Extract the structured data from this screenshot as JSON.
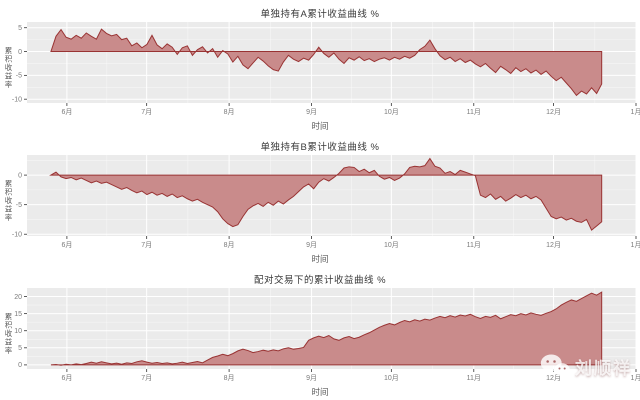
{
  "axis": {
    "x_title": "时间",
    "y_title": "累积收益率",
    "x_tick_labels": [
      "6月",
      "7月",
      "8月",
      "9月",
      "10月",
      "11月",
      "12月",
      "1月"
    ],
    "x_tick_days": [
      6,
      36,
      67,
      98,
      128,
      159,
      189,
      220
    ],
    "x_domain": [
      -9,
      220
    ]
  },
  "style": {
    "panel_bg": "#ebebeb",
    "grid_major": "#ffffff",
    "grid_minor": "rgba(255,255,255,0.55)",
    "area_fill": "#c98b8b",
    "area_line": "#993333",
    "tick_mark": "#333333",
    "tick_text": "#7a7a7a"
  },
  "watermark": {
    "text": "刘顺祥",
    "icon": "wechat-icon"
  },
  "chart_data": [
    {
      "type": "area",
      "title": "单独持有A累计收益曲线 %",
      "xlabel": "时间",
      "ylabel": "累积收益率",
      "legend": "none",
      "grid": "on",
      "x_start_day": 0,
      "x_step_days": 1.9,
      "ylim": [
        -10.8,
        6.2
      ],
      "y_ticks": [
        5,
        0,
        -5,
        -10
      ],
      "baseline": 0,
      "values": [
        0.0,
        3.2,
        4.6,
        3.0,
        2.6,
        3.4,
        2.8,
        3.9,
        3.2,
        2.6,
        4.7,
        3.8,
        3.3,
        3.6,
        2.5,
        2.8,
        1.2,
        1.8,
        0.8,
        1.5,
        3.4,
        1.4,
        0.6,
        1.6,
        0.9,
        -0.6,
        0.8,
        1.2,
        -0.8,
        0.4,
        1.0,
        -0.3,
        0.6,
        -1.2,
        0.2,
        -0.5,
        -2.2,
        -1.0,
        -2.8,
        -3.6,
        -2.4,
        -1.2,
        -2.0,
        -3.0,
        -3.8,
        -4.1,
        -2.2,
        -0.8,
        -1.6,
        -2.1,
        -1.4,
        -1.8,
        -0.6,
        0.9,
        -0.4,
        -1.2,
        -0.3,
        -1.6,
        -2.5,
        -1.3,
        -1.8,
        -1.1,
        -1.9,
        -1.5,
        -2.1,
        -1.6,
        -1.3,
        -1.8,
        -1.2,
        -1.6,
        -1.0,
        -1.4,
        -0.8,
        0.4,
        1.1,
        2.4,
        0.6,
        -0.9,
        -1.7,
        -1.2,
        -2.1,
        -1.5,
        -2.3,
        -1.8,
        -2.6,
        -3.2,
        -2.5,
        -3.5,
        -4.4,
        -3.1,
        -3.8,
        -4.6,
        -3.4,
        -4.2,
        -3.6,
        -4.5,
        -3.9,
        -4.8,
        -4.1,
        -5.2,
        -6.1,
        -5.4,
        -6.6,
        -7.8,
        -9.2,
        -8.3,
        -8.9,
        -7.6,
        -8.8,
        -6.8
      ]
    },
    {
      "type": "area",
      "title": "单独持有B累计收益曲线 %",
      "xlabel": "时间",
      "ylabel": "累积收益率",
      "legend": "none",
      "grid": "on",
      "x_start_day": 0,
      "x_step_days": 1.9,
      "ylim": [
        -10.3,
        3.4
      ],
      "y_ticks": [
        0,
        -5,
        -10
      ],
      "baseline": 0,
      "values": [
        0.0,
        0.5,
        -0.3,
        -0.6,
        -0.4,
        -0.8,
        -0.5,
        -0.9,
        -1.3,
        -1.0,
        -1.4,
        -1.2,
        -1.6,
        -2.0,
        -2.4,
        -2.1,
        -2.6,
        -3.0,
        -2.7,
        -3.3,
        -2.9,
        -3.4,
        -3.1,
        -3.6,
        -3.2,
        -3.8,
        -3.5,
        -4.0,
        -4.4,
        -4.1,
        -4.6,
        -5.0,
        -5.4,
        -6.2,
        -7.4,
        -8.2,
        -8.7,
        -8.4,
        -7.0,
        -5.8,
        -5.2,
        -4.8,
        -5.3,
        -4.6,
        -5.1,
        -4.4,
        -4.9,
        -4.2,
        -3.6,
        -2.8,
        -2.0,
        -1.5,
        -2.3,
        -1.2,
        -0.6,
        -1.0,
        -0.4,
        0.3,
        1.2,
        1.4,
        1.3,
        0.6,
        1.0,
        0.4,
        0.8,
        -0.2,
        -0.7,
        -0.4,
        -0.9,
        -0.5,
        0.2,
        1.3,
        1.5,
        1.4,
        1.6,
        2.8,
        1.5,
        1.2,
        0.3,
        0.6,
        0.1,
        0.8,
        0.5,
        0.2,
        -0.1,
        -3.4,
        -3.8,
        -3.2,
        -4.1,
        -3.6,
        -4.4,
        -3.9,
        -3.3,
        -3.8,
        -3.4,
        -4.0,
        -3.6,
        -4.2,
        -5.6,
        -7.0,
        -7.4,
        -7.1,
        -7.6,
        -7.3,
        -7.8,
        -8.0,
        -7.5,
        -9.3,
        -8.6,
        -7.9
      ]
    },
    {
      "type": "area",
      "title": "配对交易下的累计收益曲线 %",
      "xlabel": "时间",
      "ylabel": "累积收益率",
      "legend": "none",
      "grid": "on",
      "x_start_day": 0,
      "x_step_days": 1.9,
      "ylim": [
        -1.2,
        22.5
      ],
      "y_ticks": [
        20,
        15,
        10,
        5,
        0
      ],
      "baseline": 0,
      "values": [
        0.0,
        0.1,
        -0.1,
        0.2,
        0.0,
        0.3,
        0.1,
        0.4,
        0.8,
        0.5,
        0.9,
        0.6,
        0.3,
        0.5,
        0.2,
        0.6,
        0.4,
        0.9,
        1.2,
        0.8,
        0.5,
        0.7,
        0.4,
        0.6,
        0.3,
        0.5,
        0.8,
        0.4,
        0.7,
        1.0,
        0.6,
        1.4,
        2.2,
        2.6,
        3.1,
        2.7,
        3.3,
        4.1,
        4.6,
        4.2,
        3.6,
        3.9,
        4.3,
        4.0,
        4.4,
        4.1,
        4.7,
        5.0,
        4.6,
        4.8,
        5.1,
        7.2,
        7.9,
        8.4,
        8.0,
        8.6,
        7.6,
        7.2,
        7.9,
        8.3,
        7.7,
        8.1,
        8.8,
        9.4,
        10.2,
        11.0,
        11.6,
        12.1,
        11.7,
        12.4,
        13.0,
        12.6,
        13.2,
        12.8,
        13.4,
        13.1,
        13.7,
        14.2,
        13.8,
        14.4,
        14.0,
        14.6,
        14.3,
        14.8,
        14.1,
        13.6,
        14.2,
        13.9,
        14.5,
        13.5,
        14.1,
        14.7,
        14.4,
        15.0,
        14.6,
        15.2,
        14.8,
        14.5,
        15.1,
        15.6,
        16.4,
        17.5,
        18.3,
        19.0,
        18.6,
        19.4,
        20.2,
        21.0,
        20.4,
        21.3
      ]
    }
  ]
}
